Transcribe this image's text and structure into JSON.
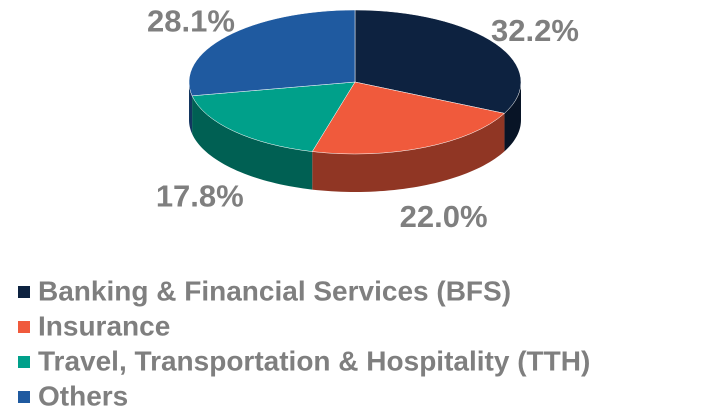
{
  "chart_data": {
    "type": "pie",
    "categories": [
      "Banking & Financial Services (BFS)",
      "Insurance",
      "Travel, Transportation & Hospitality (TTH)",
      "Others"
    ],
    "values": [
      32.2,
      22.0,
      17.8,
      28.1
    ],
    "value_labels": [
      "32.2%",
      "22.0%",
      "17.8%",
      "28.1%"
    ],
    "colors": [
      "#0d2240",
      "#f05a3c",
      "#00a08a",
      "#1f5aa0"
    ],
    "legend": "bottom"
  }
}
